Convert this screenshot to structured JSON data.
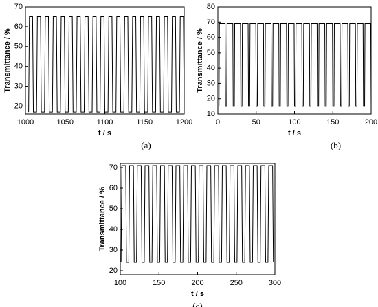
{
  "chart_data": [
    {
      "type": "line",
      "label": "(a)",
      "x_label": "t / s",
      "y_label": "Transmittance / %",
      "color": "#000000",
      "xlim": [
        1000,
        1200
      ],
      "xticks": [
        1000,
        1050,
        1100,
        1150,
        1200
      ],
      "ylim": [
        16,
        70
      ],
      "yticks": [
        20,
        30,
        40,
        50,
        60,
        70
      ],
      "x": [
        1004,
        1005,
        1009,
        1010,
        1014,
        1015,
        1019,
        1020,
        1024,
        1025,
        1029,
        1030,
        1034,
        1035,
        1039,
        1040,
        1044,
        1045,
        1049,
        1050,
        1054,
        1055,
        1059,
        1060,
        1064,
        1065,
        1069,
        1070,
        1074,
        1075,
        1079,
        1080,
        1084,
        1085,
        1089,
        1090,
        1094,
        1095,
        1099,
        1100,
        1104,
        1105,
        1109,
        1110,
        1114,
        1115,
        1119,
        1120,
        1124,
        1125,
        1129,
        1130,
        1134,
        1135,
        1139,
        1140,
        1144,
        1145,
        1149,
        1150,
        1154,
        1155,
        1159,
        1160,
        1164,
        1165,
        1169,
        1170,
        1174,
        1175,
        1179,
        1180,
        1184,
        1185,
        1189,
        1190,
        1194,
        1195,
        1199,
        1200
      ],
      "values": [
        17,
        65,
        65,
        17,
        17,
        65,
        65,
        17,
        17,
        65,
        65,
        17,
        17,
        65,
        65,
        17,
        17,
        65,
        65,
        17,
        17,
        65,
        65,
        17,
        17,
        65,
        65,
        17,
        17,
        65,
        65,
        17,
        17,
        65,
        65,
        17,
        17,
        65,
        65,
        17,
        17,
        65,
        65,
        17,
        17,
        65,
        65,
        17,
        17,
        65,
        65,
        17,
        17,
        65,
        65,
        17,
        17,
        65,
        65,
        17,
        17,
        65,
        65,
        17,
        17,
        65,
        65,
        17,
        17,
        65,
        65,
        17,
        17,
        65,
        65,
        17,
        17,
        65,
        65,
        17
      ]
    },
    {
      "type": "line",
      "label": "(b)",
      "x_label": "t / s",
      "y_label": "Transmittance / %",
      "color": "#000000",
      "xlim": [
        0,
        200
      ],
      "xticks": [
        0,
        50,
        100,
        150,
        200
      ],
      "ylim": [
        10,
        80
      ],
      "yticks": [
        10,
        20,
        30,
        40,
        50,
        60,
        70,
        80
      ],
      "x": [
        1.5,
        2,
        9.5,
        10,
        11.5,
        12,
        19.5,
        20,
        21.5,
        22,
        29.5,
        30,
        31.5,
        32,
        39.5,
        40,
        41.5,
        42,
        49.5,
        50,
        51.5,
        52,
        59.5,
        60,
        61.5,
        62,
        69.5,
        70,
        71.5,
        72,
        79.5,
        80,
        81.5,
        82,
        89.5,
        90,
        91.5,
        92,
        99.5,
        100,
        101.5,
        102,
        109.5,
        110,
        111.5,
        112,
        119.5,
        120,
        121.5,
        122,
        129.5,
        130,
        131.5,
        132,
        139.5,
        140,
        141.5,
        142,
        149.5,
        150,
        151.5,
        152,
        159.5,
        160,
        161.5,
        162,
        169.5,
        170,
        171.5,
        172,
        179.5,
        180,
        181.5,
        182,
        189.5,
        190,
        191.5,
        192,
        199.5,
        200
      ],
      "values": [
        15,
        69,
        69,
        15,
        15,
        69,
        69,
        15,
        15,
        69,
        69,
        15,
        15,
        69,
        69,
        15,
        15,
        69,
        69,
        15,
        15,
        69,
        69,
        15,
        15,
        69,
        69,
        15,
        15,
        69,
        69,
        15,
        15,
        69,
        69,
        15,
        15,
        69,
        69,
        15,
        15,
        69,
        69,
        15,
        15,
        69,
        69,
        15,
        15,
        69,
        69,
        15,
        15,
        69,
        69,
        15,
        15,
        69,
        69,
        15,
        15,
        69,
        69,
        15,
        15,
        69,
        69,
        15,
        15,
        69,
        69,
        15,
        15,
        69,
        69,
        15,
        15,
        69,
        69,
        15
      ]
    },
    {
      "type": "line",
      "label": "(c)",
      "x_label": "t / s",
      "y_label": "Transmittance / %",
      "color": "#000000",
      "xlim": [
        100,
        300
      ],
      "xticks": [
        100,
        150,
        200,
        250,
        300
      ],
      "ylim": [
        18,
        72
      ],
      "yticks": [
        20,
        30,
        40,
        50,
        60,
        70
      ],
      "x": [
        101,
        102,
        107,
        108,
        111,
        112,
        117,
        118,
        121,
        122,
        127,
        128,
        131,
        132,
        137,
        138,
        141,
        142,
        147,
        148,
        151,
        152,
        157,
        158,
        161,
        162,
        167,
        168,
        171,
        172,
        177,
        178,
        181,
        182,
        187,
        188,
        191,
        192,
        197,
        198,
        201,
        202,
        207,
        208,
        211,
        212,
        217,
        218,
        221,
        222,
        227,
        228,
        231,
        232,
        237,
        238,
        241,
        242,
        247,
        248,
        251,
        252,
        257,
        258,
        261,
        262,
        267,
        268,
        271,
        272,
        277,
        278,
        281,
        282,
        287,
        288,
        291,
        292,
        297,
        298
      ],
      "values": [
        24,
        71,
        71,
        24,
        24,
        71,
        71,
        24,
        24,
        71,
        71,
        24,
        24,
        71,
        71,
        24,
        24,
        71,
        71,
        24,
        24,
        71,
        71,
        24,
        24,
        71,
        71,
        24,
        24,
        71,
        71,
        24,
        24,
        71,
        71,
        24,
        24,
        71,
        71,
        24,
        24,
        71,
        71,
        24,
        24,
        71,
        71,
        24,
        24,
        71,
        71,
        24,
        24,
        71,
        71,
        24,
        24,
        71,
        71,
        24,
        24,
        71,
        71,
        24,
        24,
        71,
        71,
        24,
        24,
        71,
        71,
        24,
        24,
        71,
        71,
        24,
        24,
        71,
        71,
        24
      ]
    }
  ]
}
